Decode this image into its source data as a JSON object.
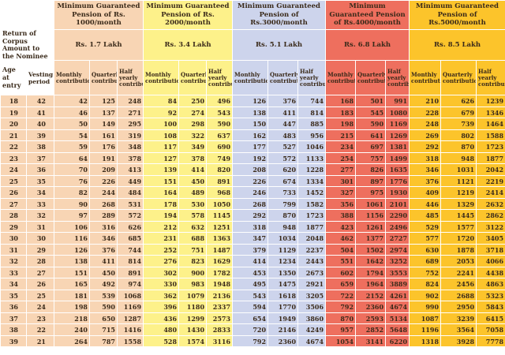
{
  "headers": {
    "return_label": "Return of Corpus Amount to the Nominee",
    "age_label": "Age at entry",
    "vesting_label": "Vesting period",
    "sub_cols": [
      "Monthly contribution",
      "Quarterly contribution",
      "Half yearly contribution"
    ]
  },
  "plans": [
    {
      "title": "Minimum Guaranteed Pension of Rs. 1000/month",
      "corpus": "Rs. 1.7 Lakh",
      "color": "#f8d5b4"
    },
    {
      "title": "Minimum Guaranteed Pension of Rs. 2000/month",
      "corpus": "Rs. 3.4 Lakh",
      "color": "#fdf18a"
    },
    {
      "title": "Minimum Guaranteed Pension of Rs.3000/month",
      "corpus": "Rs. 5.1 Lakh",
      "color": "#cdd4ec"
    },
    {
      "title": "Minimum Guaranteed Pension of Rs.4000/month",
      "corpus": "Rs. 6.8 Lakh",
      "color": "#ee6f5e"
    },
    {
      "title": "Minimum Guaranteed Pension of Rs.5000/month",
      "corpus": "Rs. 8.5 Lakh",
      "color": "#fcc42b"
    }
  ],
  "rows": [
    [
      "18",
      "42",
      "42",
      "125",
      "248",
      "84",
      "250",
      "496",
      "126",
      "376",
      "744",
      "168",
      "501",
      "991",
      "210",
      "626",
      "1239"
    ],
    [
      "19",
      "41",
      "46",
      "137",
      "271",
      "92",
      "274",
      "543",
      "138",
      "411",
      "814",
      "183",
      "545",
      "1080",
      "228",
      "679",
      "1346"
    ],
    [
      "20",
      "40",
      "50",
      "149",
      "295",
      "100",
      "298",
      "590",
      "150",
      "447",
      "885",
      "198",
      "590",
      "1169",
      "248",
      "739",
      "1464"
    ],
    [
      "21",
      "39",
      "54",
      "161",
      "319",
      "108",
      "322",
      "637",
      "162",
      "483",
      "956",
      "215",
      "641",
      "1269",
      "269",
      "802",
      "1588"
    ],
    [
      "22",
      "38",
      "59",
      "176",
      "348",
      "117",
      "349",
      "690",
      "177",
      "527",
      "1046",
      "234",
      "697",
      "1381",
      "292",
      "870",
      "1723"
    ],
    [
      "23",
      "37",
      "64",
      "191",
      "378",
      "127",
      "378",
      "749",
      "192",
      "572",
      "1133",
      "254",
      "757",
      "1499",
      "318",
      "948",
      "1877"
    ],
    [
      "24",
      "36",
      "70",
      "209",
      "413",
      "139",
      "414",
      "820",
      "208",
      "620",
      "1228",
      "277",
      "826",
      "1635",
      "346",
      "1031",
      "2042"
    ],
    [
      "25",
      "35",
      "76",
      "226",
      "449",
      "151",
      "450",
      "891",
      "226",
      "674",
      "1334",
      "301",
      "897",
      "1776",
      "376",
      "1121",
      "2219"
    ],
    [
      "26",
      "34",
      "82",
      "244",
      "484",
      "164",
      "489",
      "968",
      "246",
      "733",
      "1452",
      "327",
      "975",
      "1930",
      "409",
      "1219",
      "2414"
    ],
    [
      "27",
      "33",
      "90",
      "268",
      "531",
      "178",
      "530",
      "1050",
      "268",
      "799",
      "1582",
      "356",
      "1061",
      "2101",
      "446",
      "1329",
      "2632"
    ],
    [
      "28",
      "32",
      "97",
      "289",
      "572",
      "194",
      "578",
      "1145",
      "292",
      "870",
      "1723",
      "388",
      "1156",
      "2290",
      "485",
      "1445",
      "2862"
    ],
    [
      "29",
      "31",
      "106",
      "316",
      "626",
      "212",
      "632",
      "1251",
      "318",
      "948",
      "1877",
      "423",
      "1261",
      "2496",
      "529",
      "1577",
      "3122"
    ],
    [
      "30",
      "30",
      "116",
      "346",
      "685",
      "231",
      "688",
      "1363",
      "347",
      "1034",
      "2048",
      "462",
      "1377",
      "2727",
      "577",
      "1720",
      "3405"
    ],
    [
      "31",
      "29",
      "126",
      "376",
      "744",
      "252",
      "751",
      "1487",
      "379",
      "1129",
      "2237",
      "504",
      "1502",
      "2974",
      "630",
      "1878",
      "3718"
    ],
    [
      "32",
      "28",
      "138",
      "411",
      "814",
      "276",
      "823",
      "1629",
      "414",
      "1234",
      "2443",
      "551",
      "1642",
      "3252",
      "689",
      "2053",
      "4066"
    ],
    [
      "33",
      "27",
      "151",
      "450",
      "891",
      "302",
      "900",
      "1782",
      "453",
      "1350",
      "2673",
      "602",
      "1794",
      "3553",
      "752",
      "2241",
      "4438"
    ],
    [
      "34",
      "26",
      "165",
      "492",
      "974",
      "330",
      "983",
      "1948",
      "495",
      "1475",
      "2921",
      "659",
      "1964",
      "3889",
      "824",
      "2456",
      "4863"
    ],
    [
      "35",
      "25",
      "181",
      "539",
      "1068",
      "362",
      "1079",
      "2136",
      "543",
      "1618",
      "3205",
      "722",
      "2152",
      "4261",
      "902",
      "2688",
      "5323"
    ],
    [
      "36",
      "24",
      "198",
      "590",
      "1169",
      "396",
      "1180",
      "2337",
      "594",
      "1770",
      "3506",
      "792",
      "2360",
      "4674",
      "990",
      "2950",
      "5843"
    ],
    [
      "37",
      "23",
      "218",
      "650",
      "1287",
      "436",
      "1299",
      "2573",
      "654",
      "1949",
      "3860",
      "870",
      "2593",
      "5134",
      "1087",
      "3239",
      "6415"
    ],
    [
      "38",
      "22",
      "240",
      "715",
      "1416",
      "480",
      "1430",
      "2833",
      "720",
      "2146",
      "4249",
      "957",
      "2852",
      "5648",
      "1196",
      "3564",
      "7058"
    ],
    [
      "39",
      "21",
      "264",
      "787",
      "1558",
      "528",
      "1574",
      "3116",
      "792",
      "2360",
      "4674",
      "1054",
      "3141",
      "6220",
      "1318",
      "3928",
      "7778"
    ]
  ]
}
